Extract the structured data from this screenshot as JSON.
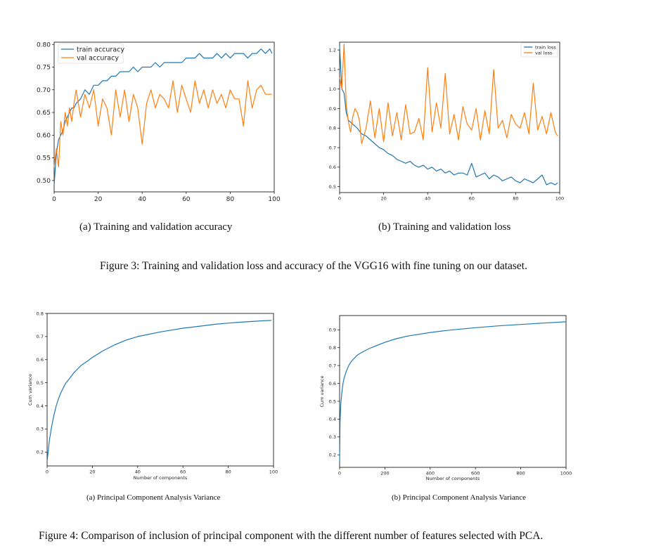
{
  "figure3": {
    "caption": "Figure 3: Training and validation loss and accuracy of the VGG16 with fine tuning on our dataset.",
    "subcaption_a": "(a) Training and validation accuracy",
    "subcaption_b": "(b) Training and validation loss"
  },
  "figure4": {
    "caption": "Figure 4: Comparison of inclusion of principal component with the different number of features selected with PCA.",
    "subcaption_a": "(a) Principal Component Analysis Variance",
    "subcaption_b": "(b) Principal Component Analysis Variance"
  },
  "colors": {
    "blue": "#1f77b4",
    "orange": "#ff7f0e"
  },
  "chart_data": [
    {
      "type": "line",
      "title": "",
      "xlabel": "",
      "ylabel": "",
      "xlim": [
        0,
        100
      ],
      "ylim": [
        0.475,
        0.805
      ],
      "xticks": [
        "0",
        "20",
        "40",
        "60",
        "80",
        "100"
      ],
      "yticks": [
        "0.50",
        "0.55",
        "0.60",
        "0.65",
        "0.70",
        "0.75",
        "0.80"
      ],
      "legend": "top-left",
      "series": [
        {
          "name": "train accuracy",
          "color": "#1f77b4",
          "x": [
            0,
            1,
            2,
            3,
            4,
            5,
            6,
            7,
            8,
            9,
            10,
            12,
            14,
            16,
            18,
            20,
            22,
            24,
            26,
            28,
            30,
            32,
            34,
            36,
            38,
            40,
            42,
            44,
            46,
            48,
            50,
            52,
            54,
            56,
            58,
            60,
            62,
            64,
            66,
            68,
            70,
            72,
            74,
            76,
            78,
            80,
            82,
            84,
            86,
            88,
            90,
            92,
            94,
            96,
            98,
            99
          ],
          "y": [
            0.49,
            0.56,
            0.59,
            0.6,
            0.61,
            0.63,
            0.64,
            0.65,
            0.66,
            0.66,
            0.67,
            0.68,
            0.7,
            0.69,
            0.71,
            0.71,
            0.72,
            0.72,
            0.73,
            0.73,
            0.74,
            0.74,
            0.74,
            0.75,
            0.74,
            0.75,
            0.75,
            0.75,
            0.76,
            0.75,
            0.76,
            0.76,
            0.76,
            0.76,
            0.76,
            0.77,
            0.77,
            0.77,
            0.78,
            0.77,
            0.77,
            0.77,
            0.78,
            0.77,
            0.78,
            0.77,
            0.78,
            0.78,
            0.78,
            0.77,
            0.78,
            0.78,
            0.79,
            0.78,
            0.79,
            0.78
          ]
        },
        {
          "name": "val accuracy",
          "color": "#ff7f0e",
          "x": [
            0,
            1,
            2,
            3,
            4,
            5,
            6,
            7,
            8,
            9,
            10,
            12,
            14,
            16,
            18,
            20,
            22,
            24,
            26,
            28,
            30,
            32,
            34,
            36,
            38,
            40,
            42,
            44,
            46,
            48,
            50,
            52,
            54,
            56,
            58,
            60,
            62,
            64,
            66,
            68,
            70,
            72,
            74,
            76,
            78,
            80,
            82,
            84,
            86,
            88,
            90,
            92,
            94,
            96,
            98,
            99
          ],
          "y": [
            0.53,
            0.57,
            0.53,
            0.63,
            0.6,
            0.65,
            0.62,
            0.66,
            0.63,
            0.67,
            0.7,
            0.64,
            0.69,
            0.66,
            0.7,
            0.62,
            0.68,
            0.66,
            0.6,
            0.7,
            0.64,
            0.7,
            0.63,
            0.69,
            0.66,
            0.58,
            0.67,
            0.7,
            0.66,
            0.69,
            0.68,
            0.66,
            0.72,
            0.65,
            0.71,
            0.68,
            0.65,
            0.72,
            0.67,
            0.7,
            0.66,
            0.7,
            0.67,
            0.69,
            0.66,
            0.7,
            0.68,
            0.68,
            0.62,
            0.72,
            0.66,
            0.7,
            0.71,
            0.69,
            0.69,
            0.69
          ]
        }
      ]
    },
    {
      "type": "line",
      "title": "",
      "xlabel": "",
      "ylabel": "",
      "xlim": [
        0,
        100
      ],
      "ylim": [
        0.47,
        1.24
      ],
      "xticks": [
        "0",
        "20",
        "40",
        "60",
        "80",
        "100"
      ],
      "yticks": [
        "0.5",
        "0.6",
        "0.7",
        "0.8",
        "0.9",
        "1.0",
        "1.1",
        "1.2"
      ],
      "legend": "top-right",
      "series": [
        {
          "name": "train loss",
          "color": "#1f77b4",
          "x": [
            0,
            1,
            2,
            3,
            4,
            5,
            6,
            8,
            10,
            12,
            14,
            16,
            18,
            20,
            22,
            24,
            26,
            28,
            30,
            32,
            34,
            36,
            38,
            40,
            42,
            44,
            46,
            48,
            50,
            52,
            54,
            56,
            58,
            60,
            62,
            64,
            66,
            68,
            70,
            72,
            74,
            76,
            78,
            80,
            82,
            84,
            86,
            88,
            90,
            92,
            94,
            96,
            98,
            99
          ],
          "y": [
            1.22,
            1.0,
            0.98,
            0.88,
            0.84,
            0.83,
            0.82,
            0.8,
            0.77,
            0.76,
            0.74,
            0.72,
            0.7,
            0.69,
            0.67,
            0.66,
            0.64,
            0.63,
            0.62,
            0.63,
            0.61,
            0.6,
            0.61,
            0.59,
            0.6,
            0.58,
            0.59,
            0.57,
            0.58,
            0.56,
            0.57,
            0.57,
            0.56,
            0.62,
            0.55,
            0.56,
            0.57,
            0.54,
            0.56,
            0.55,
            0.53,
            0.54,
            0.55,
            0.53,
            0.52,
            0.54,
            0.53,
            0.52,
            0.54,
            0.56,
            0.51,
            0.52,
            0.51,
            0.52
          ]
        },
        {
          "name": "val loss",
          "color": "#ff7f0e",
          "x": [
            0,
            1,
            2,
            3,
            4,
            5,
            6,
            7,
            8,
            9,
            10,
            12,
            14,
            16,
            18,
            20,
            22,
            24,
            26,
            28,
            30,
            32,
            34,
            36,
            38,
            40,
            42,
            44,
            46,
            48,
            50,
            52,
            54,
            56,
            58,
            60,
            62,
            64,
            66,
            68,
            70,
            72,
            74,
            76,
            78,
            80,
            82,
            84,
            86,
            88,
            90,
            92,
            94,
            96,
            98,
            99
          ],
          "y": [
            1.06,
            1.0,
            1.23,
            0.92,
            0.83,
            0.78,
            0.86,
            0.9,
            0.88,
            0.84,
            0.72,
            0.8,
            0.94,
            0.75,
            0.9,
            0.73,
            0.93,
            0.76,
            0.88,
            0.74,
            0.92,
            0.77,
            0.78,
            0.85,
            0.74,
            1.11,
            0.78,
            0.93,
            0.8,
            1.08,
            0.77,
            0.87,
            0.74,
            0.91,
            0.82,
            0.79,
            0.9,
            0.74,
            0.89,
            0.77,
            1.1,
            0.8,
            0.84,
            0.75,
            0.87,
            0.82,
            0.8,
            0.88,
            0.77,
            1.03,
            0.79,
            0.86,
            0.77,
            0.88,
            0.78,
            0.76
          ]
        }
      ]
    },
    {
      "type": "line",
      "title": "",
      "xlabel": "Number of components",
      "ylabel": "Cum variance",
      "xlim": [
        0,
        100
      ],
      "ylim": [
        0.14,
        0.8
      ],
      "xticks": [
        "0",
        "20",
        "40",
        "60",
        "80",
        "100"
      ],
      "yticks": [
        "0.2",
        "0.3",
        "0.4",
        "0.5",
        "0.6",
        "0.7",
        "0.8"
      ],
      "legend": "none",
      "series": [
        {
          "name": "",
          "color": "#1f77b4",
          "x": [
            0,
            1,
            2,
            3,
            4,
            5,
            6,
            7,
            8,
            10,
            12,
            15,
            18,
            20,
            25,
            30,
            35,
            40,
            45,
            50,
            55,
            60,
            65,
            70,
            75,
            80,
            85,
            90,
            95,
            99
          ],
          "y": [
            0.16,
            0.25,
            0.31,
            0.36,
            0.4,
            0.43,
            0.455,
            0.475,
            0.495,
            0.52,
            0.545,
            0.575,
            0.595,
            0.61,
            0.64,
            0.665,
            0.685,
            0.7,
            0.71,
            0.72,
            0.728,
            0.736,
            0.742,
            0.748,
            0.754,
            0.758,
            0.762,
            0.765,
            0.768,
            0.77
          ]
        }
      ]
    },
    {
      "type": "line",
      "title": "",
      "xlabel": "Number of components",
      "ylabel": "Cum variance",
      "xlim": [
        0,
        1000
      ],
      "ylim": [
        0.13,
        0.98
      ],
      "xticks": [
        "0",
        "200",
        "400",
        "600",
        "800",
        "1000"
      ],
      "yticks": [
        "0.2",
        "0.3",
        "0.4",
        "0.5",
        "0.6",
        "0.7",
        "0.8",
        "0.9"
      ],
      "legend": "none",
      "series": [
        {
          "name": "",
          "color": "#1f77b4",
          "x": [
            0,
            2,
            5,
            10,
            15,
            20,
            30,
            40,
            50,
            60,
            80,
            100,
            130,
            160,
            200,
            250,
            300,
            350,
            400,
            450,
            500,
            600,
            700,
            800,
            900,
            1000
          ],
          "y": [
            0.16,
            0.38,
            0.48,
            0.55,
            0.6,
            0.63,
            0.67,
            0.7,
            0.72,
            0.735,
            0.76,
            0.775,
            0.795,
            0.81,
            0.83,
            0.85,
            0.865,
            0.875,
            0.885,
            0.893,
            0.9,
            0.912,
            0.922,
            0.93,
            0.938,
            0.945
          ]
        }
      ]
    }
  ]
}
